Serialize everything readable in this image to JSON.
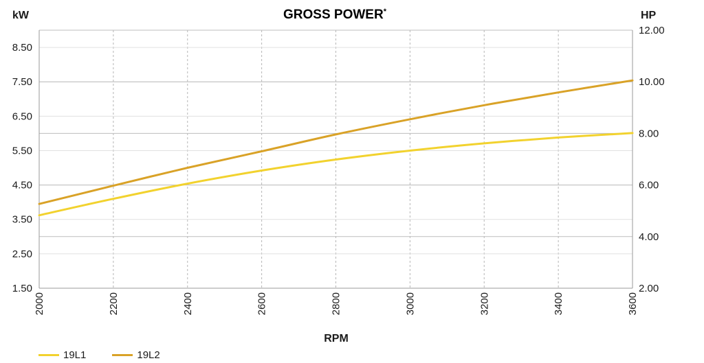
{
  "chart_data": {
    "type": "line",
    "title": "GROSS POWER",
    "title_mark": "*",
    "xlabel": "RPM",
    "ylabel_left": "kW",
    "ylabel_right": "HP",
    "x": [
      2000,
      2200,
      2400,
      2600,
      2800,
      3000,
      3200,
      3400,
      3600
    ],
    "xlim": [
      2000,
      3600
    ],
    "ylim_left": [
      1.5,
      9.0
    ],
    "yticks_left": [
      "1.50",
      "2.50",
      "3.50",
      "4.50",
      "5.50",
      "6.50",
      "7.50",
      "8.50"
    ],
    "ylim_right": [
      2.0,
      12.0
    ],
    "yticks_right": [
      "2.00",
      "4.00",
      "6.00",
      "8.00",
      "10.00",
      "12.00"
    ],
    "grid": true,
    "legend_position": "bottom-left",
    "series": [
      {
        "name": "19L1",
        "color": "#f2d22e",
        "values": [
          3.62,
          4.1,
          4.54,
          4.92,
          5.24,
          5.5,
          5.71,
          5.88,
          6.01
        ]
      },
      {
        "name": "19L2",
        "color": "#d9a227",
        "values": [
          3.95,
          4.48,
          5.0,
          5.48,
          5.97,
          6.41,
          6.82,
          7.19,
          7.54
        ]
      }
    ]
  }
}
